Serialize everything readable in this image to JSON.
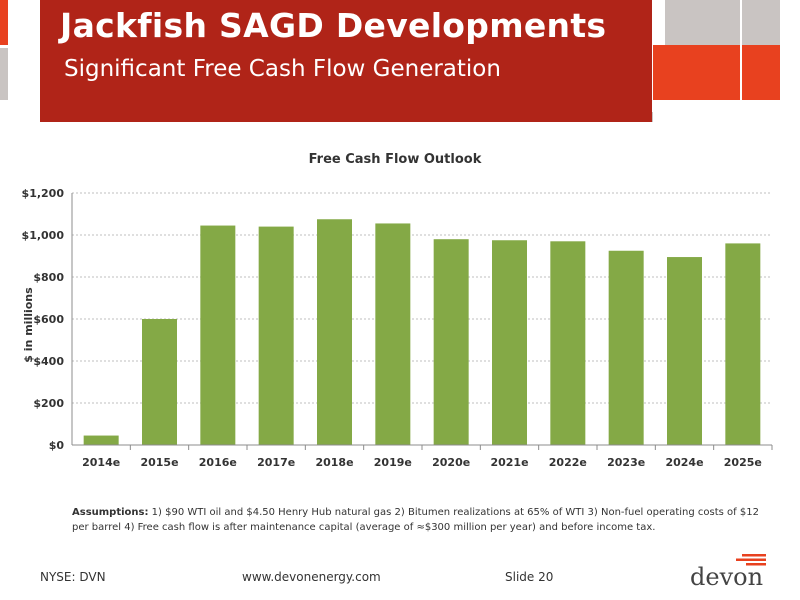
{
  "slide": {
    "title": "Jackfish SAGD Developments",
    "subtitle": "Significant Free Cash Flow Generation"
  },
  "chart_data": {
    "type": "bar",
    "title": "Free Cash Flow Outlook",
    "xlabel": "",
    "ylabel": "$ in millions",
    "categories": [
      "2014e",
      "2015e",
      "2016e",
      "2017e",
      "2018e",
      "2019e",
      "2020e",
      "2021e",
      "2022e",
      "2023e",
      "2024e",
      "2025e"
    ],
    "values": [
      45,
      600,
      1045,
      1040,
      1075,
      1055,
      980,
      975,
      970,
      925,
      895,
      960
    ],
    "ylim": [
      0,
      1200
    ],
    "yticks": [
      0,
      200,
      400,
      600,
      800,
      1000,
      1200
    ],
    "ytick_labels": [
      "$0",
      "$200",
      "$400",
      "$600",
      "$800",
      "$1,000",
      "$1,200"
    ],
    "bar_color": "#84a946",
    "grid": true,
    "legend": "none"
  },
  "assumptions": {
    "label": "Assumptions:",
    "text": " 1) $90 WTI oil and $4.50 Henry Hub natural gas 2) Bitumen realizations at 65% of WTI  3) Non-fuel operating costs of $12 per barrel  4) Free cash flow is after maintenance capital (average of ≈$300 million per year) and before income tax."
  },
  "footer": {
    "ticker": "NYSE: DVN",
    "website": "www.devonenergy.com",
    "slide_number": "Slide 20",
    "logo": "devon"
  },
  "colors": {
    "header_red": "#b02418",
    "accent_orange": "#e8411f",
    "deco_gray": "#c9c4c2"
  }
}
